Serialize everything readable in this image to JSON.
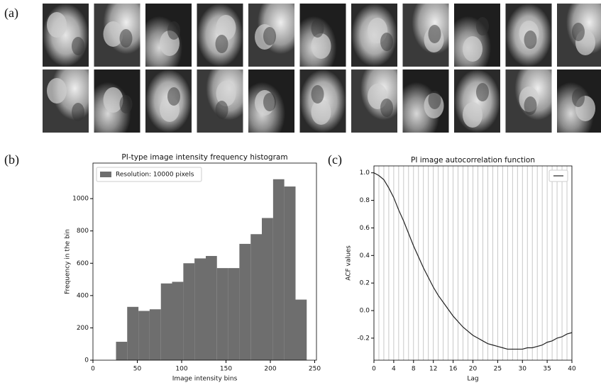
{
  "panel_labels": [
    "(a)",
    "(b)",
    "(c)"
  ],
  "chart_data": [
    {
      "type": "histogram",
      "title": "PI-type image intensity  frequency histogram",
      "x_label": "Image intensity bins",
      "y_label": "Frequency in the bin",
      "bins": [
        26,
        38.6,
        51.3,
        63.9,
        76.6,
        89.2,
        101.9,
        114.5,
        127.2,
        139.8,
        152.5,
        165.1,
        177.8,
        190.4,
        203.1,
        215.7,
        228.4,
        241
      ],
      "series": [
        {
          "name": "Resolution: 10000 pixels",
          "color": "#6e6e6e",
          "values": [
            114,
            330,
            305,
            315,
            475,
            485,
            600,
            630,
            645,
            570,
            570,
            720,
            780,
            880,
            1120,
            1075,
            375
          ]
        }
      ],
      "xlim": [
        0,
        252
      ],
      "xticks": [
        0,
        50,
        100,
        150,
        200,
        250
      ],
      "ylim": [
        0,
        1220
      ],
      "yticks": [
        0,
        200,
        400,
        600,
        800,
        1000
      ],
      "legend": "upper-left"
    },
    {
      "type": "line",
      "title": "PI image autocorrelation function",
      "x_label": "Lag",
      "y_label": "ACF values",
      "x": [
        0,
        1,
        2,
        3,
        4,
        5,
        6,
        7,
        8,
        9,
        10,
        11,
        12,
        13,
        14,
        15,
        16,
        17,
        18,
        19,
        20,
        21,
        22,
        23,
        24,
        25,
        26,
        27,
        28,
        29,
        30,
        31,
        32,
        33,
        34,
        35,
        36,
        37,
        38,
        39,
        40
      ],
      "series": [
        {
          "color": "#222222",
          "values": [
            1.0,
            0.98,
            0.95,
            0.89,
            0.82,
            0.73,
            0.65,
            0.56,
            0.47,
            0.39,
            0.31,
            0.24,
            0.17,
            0.11,
            0.06,
            0.01,
            -0.04,
            -0.08,
            -0.12,
            -0.15,
            -0.18,
            -0.2,
            -0.22,
            -0.24,
            -0.25,
            -0.26,
            -0.27,
            -0.28,
            -0.28,
            -0.28,
            -0.28,
            -0.27,
            -0.27,
            -0.26,
            -0.25,
            -0.23,
            -0.22,
            -0.2,
            -0.19,
            -0.17,
            -0.16
          ]
        }
      ],
      "xlim": [
        0,
        40
      ],
      "xticks": [
        0,
        4,
        8,
        12,
        16,
        20,
        25,
        30,
        35,
        40
      ],
      "ylim": [
        -0.36,
        1.05
      ],
      "yticks": [
        -0.2,
        {
          "value": 0,
          "label": "0.0"
        },
        0.2,
        0.4,
        0.6,
        0.8,
        {
          "value": 1,
          "label": "1.0"
        }
      ],
      "grid_step": 1,
      "legend": "upper-right"
    }
  ]
}
